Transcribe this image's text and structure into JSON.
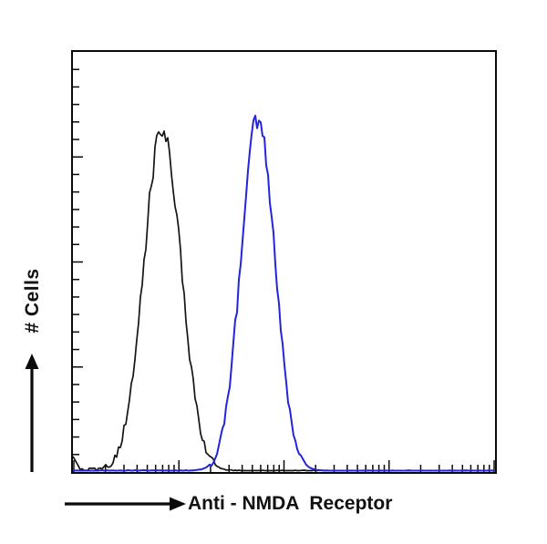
{
  "figure": {
    "background": "#ffffff",
    "frame_color": "#0a0a0a",
    "arrow_color": "#0a0a0a"
  },
  "chart_data": {
    "type": "line",
    "subtype": "flow-cytometry-histogram",
    "title": "",
    "xlabel": "Anti - NMDA  Receptor",
    "ylabel": "# Cells",
    "x_axis": {
      "tick_style": "log-decades",
      "decades": 4
    },
    "y_axis": {
      "tick_count": 24
    },
    "ylim": [
      0,
      1
    ],
    "series": [
      {
        "name": "black-curve",
        "color": "#141414",
        "line_width": 1.7,
        "peak_center": 0.212,
        "peak_sigma": 0.044,
        "peak_height": 0.84,
        "baseline_noise": 0.007,
        "edge_spike": 0.035
      },
      {
        "name": "blue-curve",
        "color": "#2424dd",
        "line_width": 2.0,
        "peak_center": 0.438,
        "peak_sigma": 0.04,
        "peak_height": 0.865,
        "baseline_noise": 0.0015,
        "edge_spike": 0
      }
    ]
  }
}
